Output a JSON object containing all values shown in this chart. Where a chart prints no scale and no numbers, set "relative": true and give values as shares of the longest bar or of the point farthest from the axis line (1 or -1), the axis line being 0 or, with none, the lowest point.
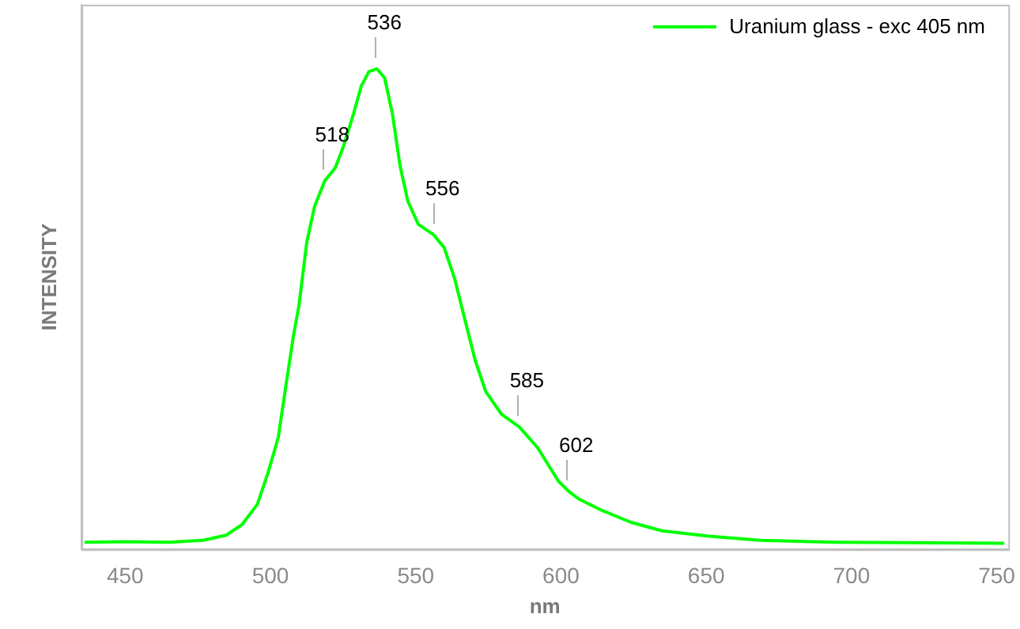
{
  "chart_data": {
    "type": "line",
    "xlabel": "nm",
    "ylabel": "INTENSITY",
    "relative": true,
    "grid": false,
    "legend": "top right",
    "marker": "none",
    "line_style": "solid",
    "xlim": [
      435,
      754
    ],
    "xticks": [
      450,
      500,
      550,
      600,
      650,
      700,
      750
    ],
    "series": [
      {
        "name": "Uranium glass - exc 405 nm",
        "color": "#00ff00",
        "x": [
          436,
          450,
          465,
          476.8,
          484.8,
          490.2,
          495.5,
          499.1,
          502.7,
          505.3,
          508,
          509.8,
          512.5,
          515.2,
          518.7,
          522.3,
          525,
          528.6,
          531.3,
          533.9,
          536.6,
          539.3,
          542,
          544.6,
          547.3,
          550.9,
          556.2,
          559.8,
          563.4,
          566.9,
          570.5,
          574.1,
          579.5,
          585.7,
          592,
          599.1,
          602.7,
          606.2,
          613.4,
          624.1,
          634.8,
          650.9,
          668.5,
          695.3,
          720,
          752.6
        ],
        "values": [
          0.002,
          0.003,
          0.002,
          0.006,
          0.017,
          0.039,
          0.082,
          0.147,
          0.223,
          0.331,
          0.44,
          0.5,
          0.634,
          0.71,
          0.764,
          0.791,
          0.834,
          0.905,
          0.964,
          0.994,
          1.0,
          0.981,
          0.905,
          0.796,
          0.721,
          0.672,
          0.65,
          0.623,
          0.558,
          0.472,
          0.385,
          0.32,
          0.272,
          0.245,
          0.201,
          0.131,
          0.109,
          0.093,
          0.071,
          0.044,
          0.026,
          0.015,
          0.006,
          0.002,
          0.001,
          0.0
        ]
      }
    ],
    "annotations": [
      {
        "text": "518",
        "x": 518,
        "y": 0.764
      },
      {
        "text": "536",
        "x": 536,
        "y": 1.0
      },
      {
        "text": "556",
        "x": 556,
        "y": 0.65
      },
      {
        "text": "585",
        "x": 585,
        "y": 0.245
      },
      {
        "text": "602",
        "x": 602,
        "y": 0.109
      }
    ]
  }
}
